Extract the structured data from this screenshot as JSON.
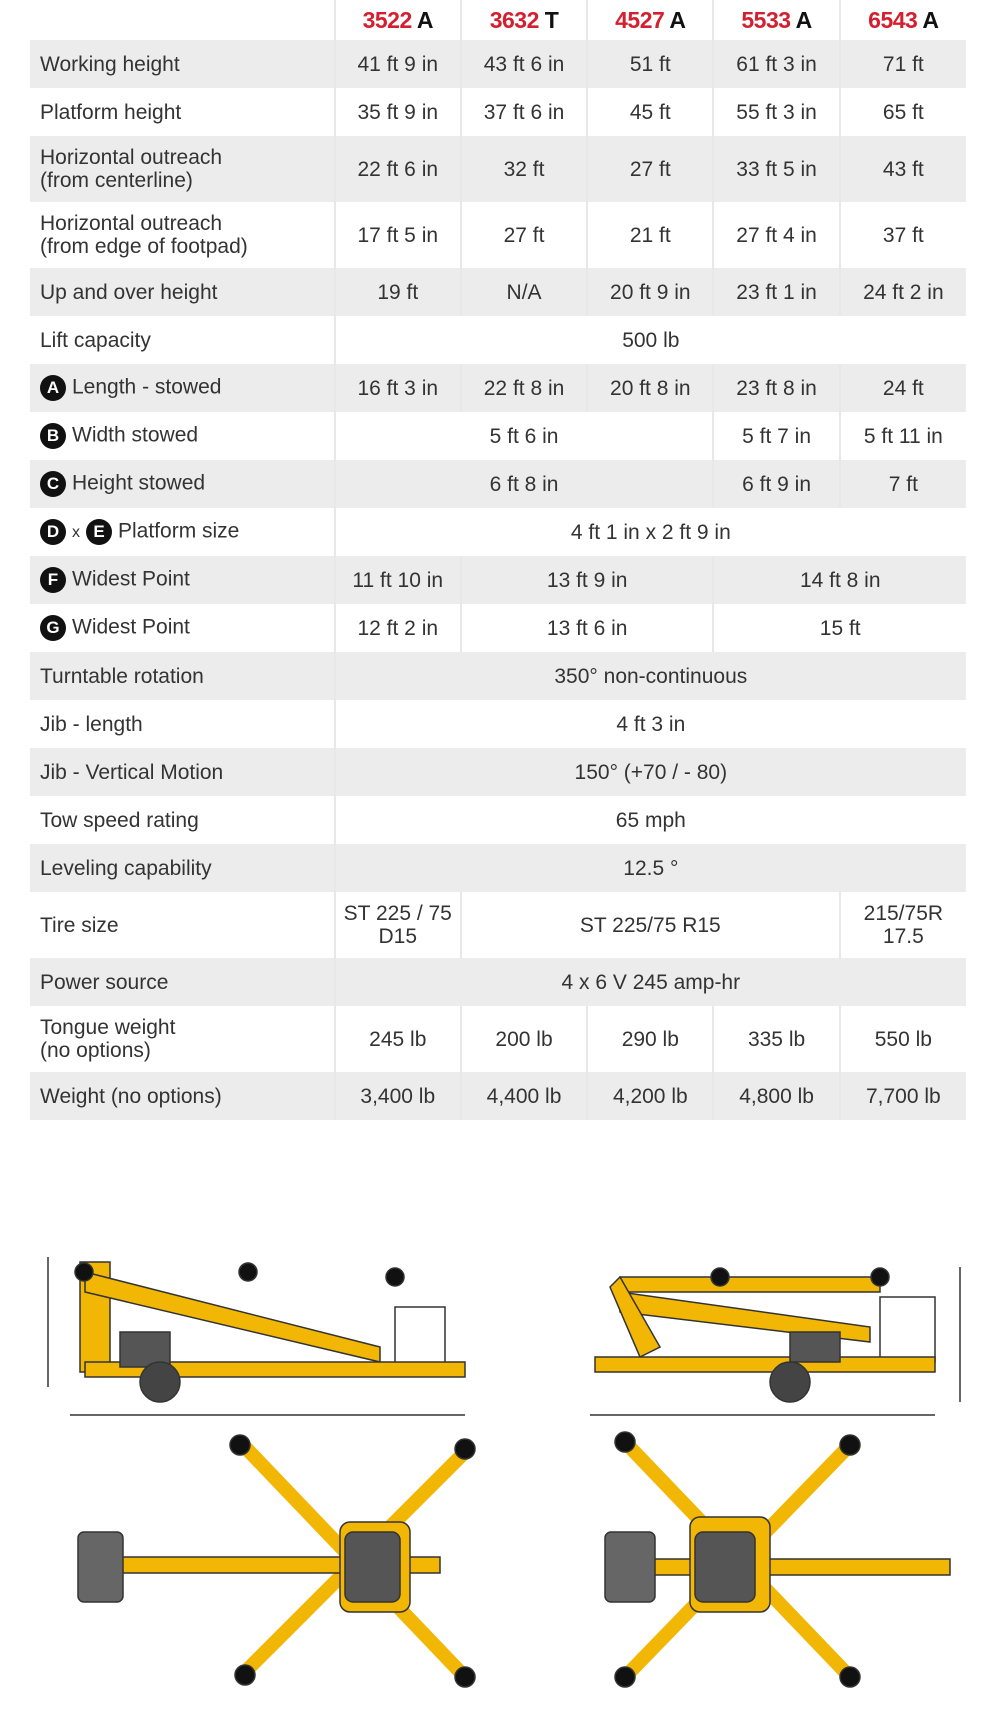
{
  "models": [
    {
      "num": "3522",
      "suffix": "A"
    },
    {
      "num": "3632",
      "suffix": "T"
    },
    {
      "num": "4527",
      "suffix": "A"
    },
    {
      "num": "5533",
      "suffix": "A"
    },
    {
      "num": "6543",
      "suffix": "A"
    }
  ],
  "rows": [
    {
      "label": "Working height",
      "cells": [
        {
          "v": "41 ft 9 in",
          "span": 1
        },
        {
          "v": "43 ft 6 in",
          "span": 1
        },
        {
          "v": "51 ft",
          "span": 1
        },
        {
          "v": "61 ft 3 in",
          "span": 1
        },
        {
          "v": "71 ft",
          "span": 1
        }
      ]
    },
    {
      "label": "Platform height",
      "cells": [
        {
          "v": "35 ft 9 in",
          "span": 1
        },
        {
          "v": "37 ft 6 in",
          "span": 1
        },
        {
          "v": "45 ft",
          "span": 1
        },
        {
          "v": "55 ft 3 in",
          "span": 1
        },
        {
          "v": "65 ft",
          "span": 1
        }
      ]
    },
    {
      "label": "Horizontal outreach",
      "label2": "(from centerline)",
      "cells": [
        {
          "v": "22 ft 6 in",
          "span": 1
        },
        {
          "v": "32 ft",
          "span": 1
        },
        {
          "v": "27 ft",
          "span": 1
        },
        {
          "v": "33 ft 5 in",
          "span": 1
        },
        {
          "v": "43 ft",
          "span": 1
        }
      ]
    },
    {
      "label": "Horizontal outreach",
      "label2": "(from edge of footpad)",
      "cells": [
        {
          "v": "17 ft 5 in",
          "span": 1
        },
        {
          "v": "27 ft",
          "span": 1
        },
        {
          "v": "21 ft",
          "span": 1
        },
        {
          "v": "27 ft 4 in",
          "span": 1
        },
        {
          "v": "37 ft",
          "span": 1
        }
      ]
    },
    {
      "label": "Up and over height",
      "cells": [
        {
          "v": "19 ft",
          "span": 1
        },
        {
          "v": "N/A",
          "span": 1
        },
        {
          "v": "20 ft 9 in",
          "span": 1
        },
        {
          "v": "23 ft 1 in",
          "span": 1
        },
        {
          "v": "24 ft 2 in",
          "span": 1
        }
      ]
    },
    {
      "label": "Lift capacity",
      "cells": [
        {
          "v": "500 lb",
          "span": 5
        }
      ]
    },
    {
      "badges": [
        "A"
      ],
      "label": "Length - stowed",
      "cells": [
        {
          "v": "16 ft 3 in",
          "span": 1
        },
        {
          "v": "22 ft 8 in",
          "span": 1
        },
        {
          "v": "20 ft 8 in",
          "span": 1
        },
        {
          "v": "23 ft 8 in",
          "span": 1
        },
        {
          "v": "24 ft",
          "span": 1
        }
      ]
    },
    {
      "badges": [
        "B"
      ],
      "label": "Width stowed",
      "cells": [
        {
          "v": "5 ft 6 in",
          "span": 3
        },
        {
          "v": "5 ft 7 in",
          "span": 1
        },
        {
          "v": "5 ft 11 in",
          "span": 1
        }
      ]
    },
    {
      "badges": [
        "C"
      ],
      "label": "Height stowed",
      "cells": [
        {
          "v": "6 ft 8 in",
          "span": 3
        },
        {
          "v": "6 ft 9 in",
          "span": 1
        },
        {
          "v": "7 ft",
          "span": 1
        }
      ]
    },
    {
      "badges": [
        "D",
        "E"
      ],
      "sep": "x",
      "label": "Platform size",
      "cells": [
        {
          "v": "4 ft 1 in x 2 ft 9 in",
          "span": 5
        }
      ]
    },
    {
      "badges": [
        "F"
      ],
      "label": "Widest Point",
      "cells": [
        {
          "v": "11 ft 10 in",
          "span": 1
        },
        {
          "v": "13 ft 9 in",
          "span": 2
        },
        {
          "v": "14 ft 8 in",
          "span": 2
        }
      ]
    },
    {
      "badges": [
        "G"
      ],
      "label": "Widest Point",
      "cells": [
        {
          "v": "12 ft 2 in",
          "span": 1
        },
        {
          "v": "13 ft 6 in",
          "span": 2
        },
        {
          "v": "15 ft",
          "span": 2
        }
      ]
    },
    {
      "label": "Turntable rotation",
      "cells": [
        {
          "v": "350° non-continuous",
          "span": 5
        }
      ]
    },
    {
      "label": "Jib - length",
      "cells": [
        {
          "v": "4 ft 3 in",
          "span": 5
        }
      ]
    },
    {
      "label": "Jib - Vertical Motion",
      "cells": [
        {
          "v": "150° (+70 / - 80)",
          "span": 5
        }
      ]
    },
    {
      "label": "Tow speed rating",
      "cells": [
        {
          "v": "65 mph",
          "span": 5
        }
      ]
    },
    {
      "label": "Leveling capability",
      "cells": [
        {
          "v": "12.5 °",
          "span": 5
        }
      ]
    },
    {
      "label": "Tire size",
      "cells": [
        {
          "v": "ST 225 / 75",
          "v2": "D15",
          "span": 1
        },
        {
          "v": "ST 225/75 R15",
          "span": 3
        },
        {
          "v": "215/75R",
          "v2": "17.5",
          "span": 1
        }
      ]
    },
    {
      "label": "Power source",
      "cells": [
        {
          "v": "4 x 6 V 245 amp-hr",
          "span": 5
        }
      ]
    },
    {
      "label": "Tongue weight",
      "label2": "(no options)",
      "cells": [
        {
          "v": "245 lb",
          "span": 1
        },
        {
          "v": "200 lb",
          "span": 1
        },
        {
          "v": "290 lb",
          "span": 1
        },
        {
          "v": "335 lb",
          "span": 1
        },
        {
          "v": "550 lb",
          "span": 1
        }
      ]
    },
    {
      "label": "Weight (no options)",
      "cells": [
        {
          "v": "3,400 lb",
          "span": 1
        },
        {
          "v": "4,400 lb",
          "span": 1
        },
        {
          "v": "4,200 lb",
          "span": 1
        },
        {
          "v": "4,800 lb",
          "span": 1
        },
        {
          "v": "7,700 lb",
          "span": 1
        }
      ]
    }
  ],
  "colors": {
    "model_number": "#d4202e",
    "stripe": "#ececec",
    "machine": "#f2b705"
  }
}
